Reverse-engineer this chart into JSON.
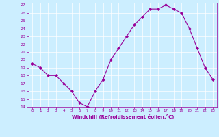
{
  "x": [
    0,
    1,
    2,
    3,
    4,
    5,
    6,
    7,
    8,
    9,
    10,
    11,
    12,
    13,
    14,
    15,
    16,
    17,
    18,
    19,
    20,
    21,
    22,
    23
  ],
  "y": [
    19.5,
    19.0,
    18.0,
    18.0,
    17.0,
    16.0,
    14.5,
    14.0,
    16.0,
    17.5,
    20.0,
    21.5,
    23.0,
    24.5,
    25.5,
    26.5,
    26.5,
    27.0,
    26.5,
    26.0,
    24.0,
    21.5,
    19.0,
    17.5
  ],
  "line_color": "#990099",
  "marker": "D",
  "marker_size": 2,
  "bg_color": "#cceeff",
  "grid_color": "#ffffff",
  "xlabel": "Windchill (Refroidissement éolien,°C)",
  "xlabel_color": "#990099",
  "tick_color": "#990099",
  "ylim": [
    14,
    27
  ],
  "xlim": [
    -0.5,
    23.5
  ],
  "yticks": [
    14,
    15,
    16,
    17,
    18,
    19,
    20,
    21,
    22,
    23,
    24,
    25,
    26,
    27
  ],
  "xticks": [
    0,
    1,
    2,
    3,
    4,
    5,
    6,
    7,
    8,
    9,
    10,
    11,
    12,
    13,
    14,
    15,
    16,
    17,
    18,
    19,
    20,
    21,
    22,
    23
  ]
}
